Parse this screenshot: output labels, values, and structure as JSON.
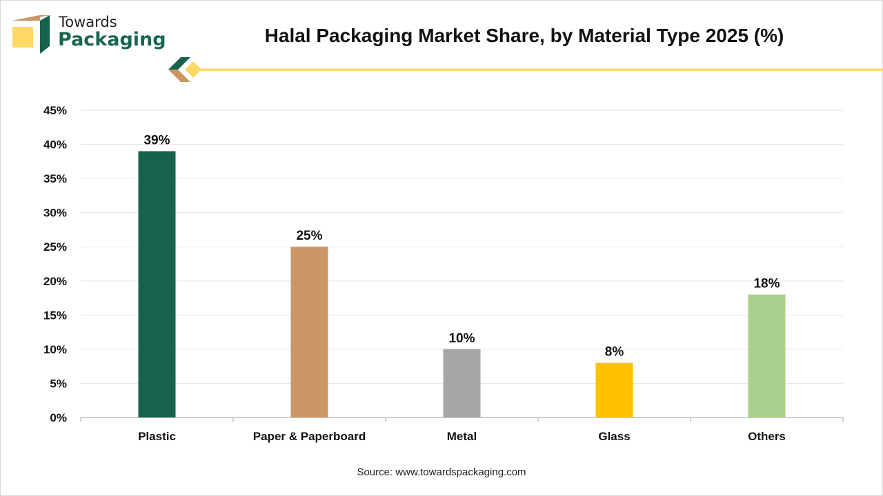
{
  "brand": {
    "line1": "Towards",
    "line2": "Packaging"
  },
  "colors": {
    "plastic": "#17614f",
    "paper": "#c99664",
    "metal": "#a6a6a6",
    "glass": "#ffc000",
    "others": "#a9d18e"
  },
  "source": "Source: www.towardspackaging.com",
  "chart_data": {
    "type": "bar",
    "title": "Halal Packaging Market Share, by Material Type 2025 (%)",
    "categories": [
      "Plastic",
      "Paper & Paperboard",
      "Metal",
      "Glass",
      "Others"
    ],
    "values": [
      39,
      25,
      10,
      8,
      18
    ],
    "value_labels": [
      "39%",
      "25%",
      "10%",
      "8%",
      "18%"
    ],
    "bar_colors": [
      "#17614f",
      "#c99664",
      "#a6a6a6",
      "#ffc000",
      "#a9d18e"
    ],
    "ylim": [
      0,
      45
    ],
    "yticks": [
      0,
      5,
      10,
      15,
      20,
      25,
      30,
      35,
      40,
      45
    ],
    "ytick_labels": [
      "0%",
      "5%",
      "10%",
      "15%",
      "20%",
      "25%",
      "30%",
      "35%",
      "40%",
      "45%"
    ],
    "xlabel": "",
    "ylabel": "",
    "grid": true
  }
}
